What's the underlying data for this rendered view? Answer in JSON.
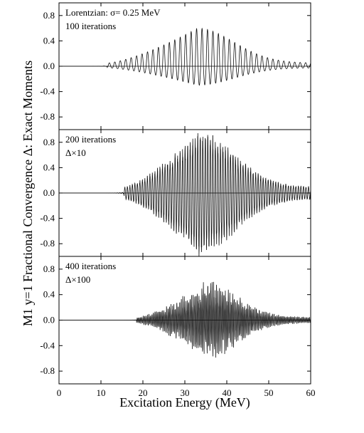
{
  "chart_data": {
    "type": "line",
    "layout": "three vertically stacked panels sharing the x axis",
    "xlabel": "Excitation Energy (MeV)",
    "ylabel": "M1 y=1 Fractional Convergence Δ: Exact Moments",
    "xlim": [
      0,
      60
    ],
    "x_ticks": [
      "0",
      "10",
      "20",
      "30",
      "40",
      "50",
      "60"
    ],
    "ylim": [
      -1.0,
      1.0
    ],
    "y_ticks": [
      "0.8",
      "0.4",
      "0.0",
      "-0.4",
      "-0.8"
    ],
    "grid": false,
    "panels": [
      {
        "annotation_lines": [
          "Lorentzian: σ= 0.25 MeV",
          "100 iterations"
        ],
        "waveform": {
          "onset_x": 11.5,
          "onset_amp": 0.05,
          "peak_x": 33,
          "peak_amp": 0.6,
          "min_trough": -0.3,
          "tail_end_x": 60,
          "tail_amp": 0.03,
          "period_mev": 1.3,
          "style": "regular smooth oscillation, positive lobes larger than negative"
        }
      },
      {
        "annotation_lines": [
          "200 iterations",
          "Δ×10"
        ],
        "waveform": {
          "onset_x": 15.5,
          "onset_amp": 0.1,
          "peak_x": 33,
          "peak_amp": 1.0,
          "min_trough": -1.0,
          "tail_end_x": 60,
          "tail_amp": 0.05,
          "period_mev": 0.6,
          "style": "dense oscillation, clipped at frame top and bottom near the centre"
        }
      },
      {
        "annotation_lines": [
          "400 iterations",
          "Δ×100"
        ],
        "waveform": {
          "onset_x": 18.5,
          "onset_amp": 0.05,
          "peak_x": 35,
          "peak_amp": 0.63,
          "min_trough": -0.6,
          "tail_end_x": 58,
          "tail_amp": 0.02,
          "period_mev": 0.35,
          "style": "very dense, irregular oscillation"
        }
      }
    ]
  }
}
